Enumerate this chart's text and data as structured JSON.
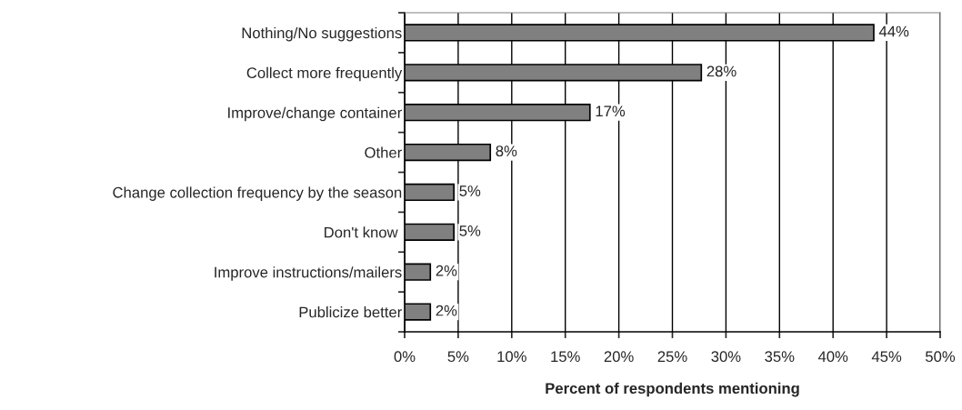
{
  "chart_data": {
    "type": "bar",
    "orientation": "horizontal",
    "xlabel": "Percent of respondents mentioning",
    "categories": [
      "Nothing/No suggestions",
      "Collect more frequently",
      "Improve/change container",
      "Other",
      "Change collection frequency by the season",
      "Don't know ",
      "Improve instructions/mailers",
      "Publicize better"
    ],
    "values": [
      43.8,
      27.7,
      17.3,
      8.0,
      4.6,
      4.6,
      2.4,
      2.4
    ],
    "value_labels": [
      "44%",
      "28%",
      "17%",
      "8%",
      "5%",
      "5%",
      "2%",
      "2%"
    ],
    "color": "#808080",
    "xlim": [
      0,
      50
    ],
    "xticks": [
      {
        "value": 0,
        "label": "0%"
      },
      {
        "value": 5,
        "label": "5%"
      },
      {
        "value": 10,
        "label": "10%"
      },
      {
        "value": 15,
        "label": "15%"
      },
      {
        "value": 20,
        "label": "20%"
      },
      {
        "value": 25,
        "label": "25%"
      },
      {
        "value": 30,
        "label": "30%"
      },
      {
        "value": 35,
        "label": "35%"
      },
      {
        "value": 40,
        "label": "40%"
      },
      {
        "value": 45,
        "label": "45%"
      },
      {
        "value": 50,
        "label": "50%"
      }
    ],
    "grid": "x"
  }
}
